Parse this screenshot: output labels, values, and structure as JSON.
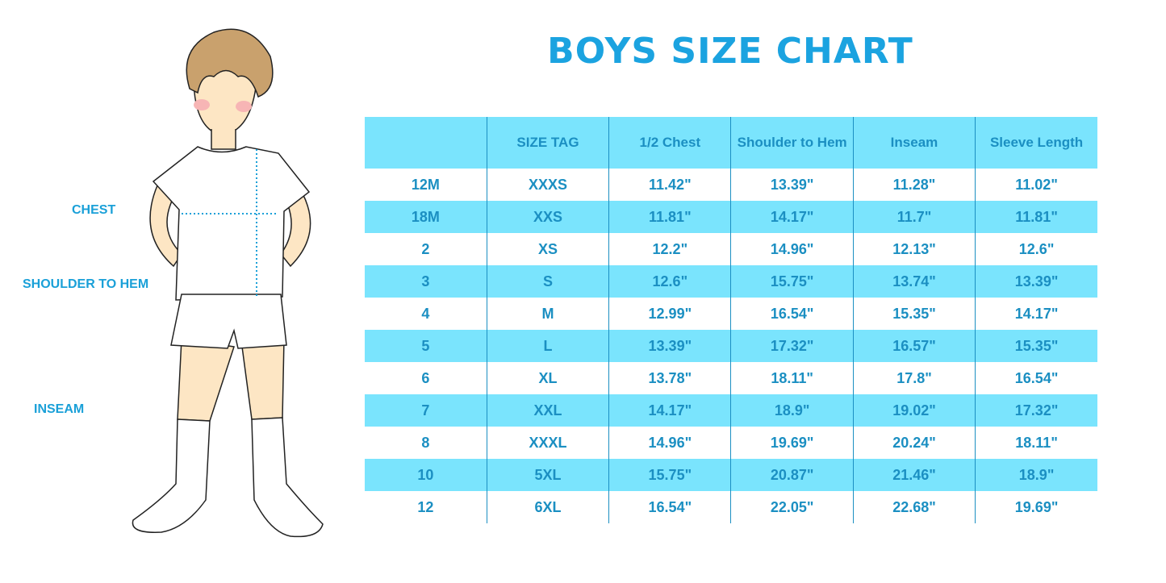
{
  "title": "BOYS SIZE CHART",
  "measure_labels": {
    "chest": "CHEST",
    "shoulder_to_hem": "SHOULDER TO HEM",
    "inseam": "INSEAM"
  },
  "colors": {
    "accent": "#1ba3e0",
    "row_highlight": "#7ae4fd",
    "text": "#1b8fc2"
  },
  "chart_data": {
    "type": "table",
    "title": "BOYS SIZE CHART",
    "columns": [
      "",
      "SIZE TAG",
      "1/2 Chest",
      "Shoulder to Hem",
      "Inseam",
      "Sleeve Length"
    ],
    "rows": [
      [
        "12M",
        "XXXS",
        "11.42\"",
        "13.39\"",
        "11.28\"",
        "11.02\""
      ],
      [
        "18M",
        "XXS",
        "11.81\"",
        "14.17\"",
        "11.7\"",
        "11.81\""
      ],
      [
        "2",
        "XS",
        "12.2\"",
        "14.96\"",
        "12.13\"",
        "12.6\""
      ],
      [
        "3",
        "S",
        "12.6\"",
        "15.75\"",
        "13.74\"",
        "13.39\""
      ],
      [
        "4",
        "M",
        "12.99\"",
        "16.54\"",
        "15.35\"",
        "14.17\""
      ],
      [
        "5",
        "L",
        "13.39\"",
        "17.32\"",
        "16.57\"",
        "15.35\""
      ],
      [
        "6",
        "XL",
        "13.78\"",
        "18.11\"",
        "17.8\"",
        "16.54\""
      ],
      [
        "7",
        "XXL",
        "14.17\"",
        "18.9\"",
        "19.02\"",
        "17.32\""
      ],
      [
        "8",
        "XXXL",
        "14.96\"",
        "19.69\"",
        "20.24\"",
        "18.11\""
      ],
      [
        "10",
        "5XL",
        "15.75\"",
        "20.87\"",
        "21.46\"",
        "18.9\""
      ],
      [
        "12",
        "6XL",
        "16.54\"",
        "22.05\"",
        "22.68\"",
        "19.69\""
      ]
    ]
  }
}
